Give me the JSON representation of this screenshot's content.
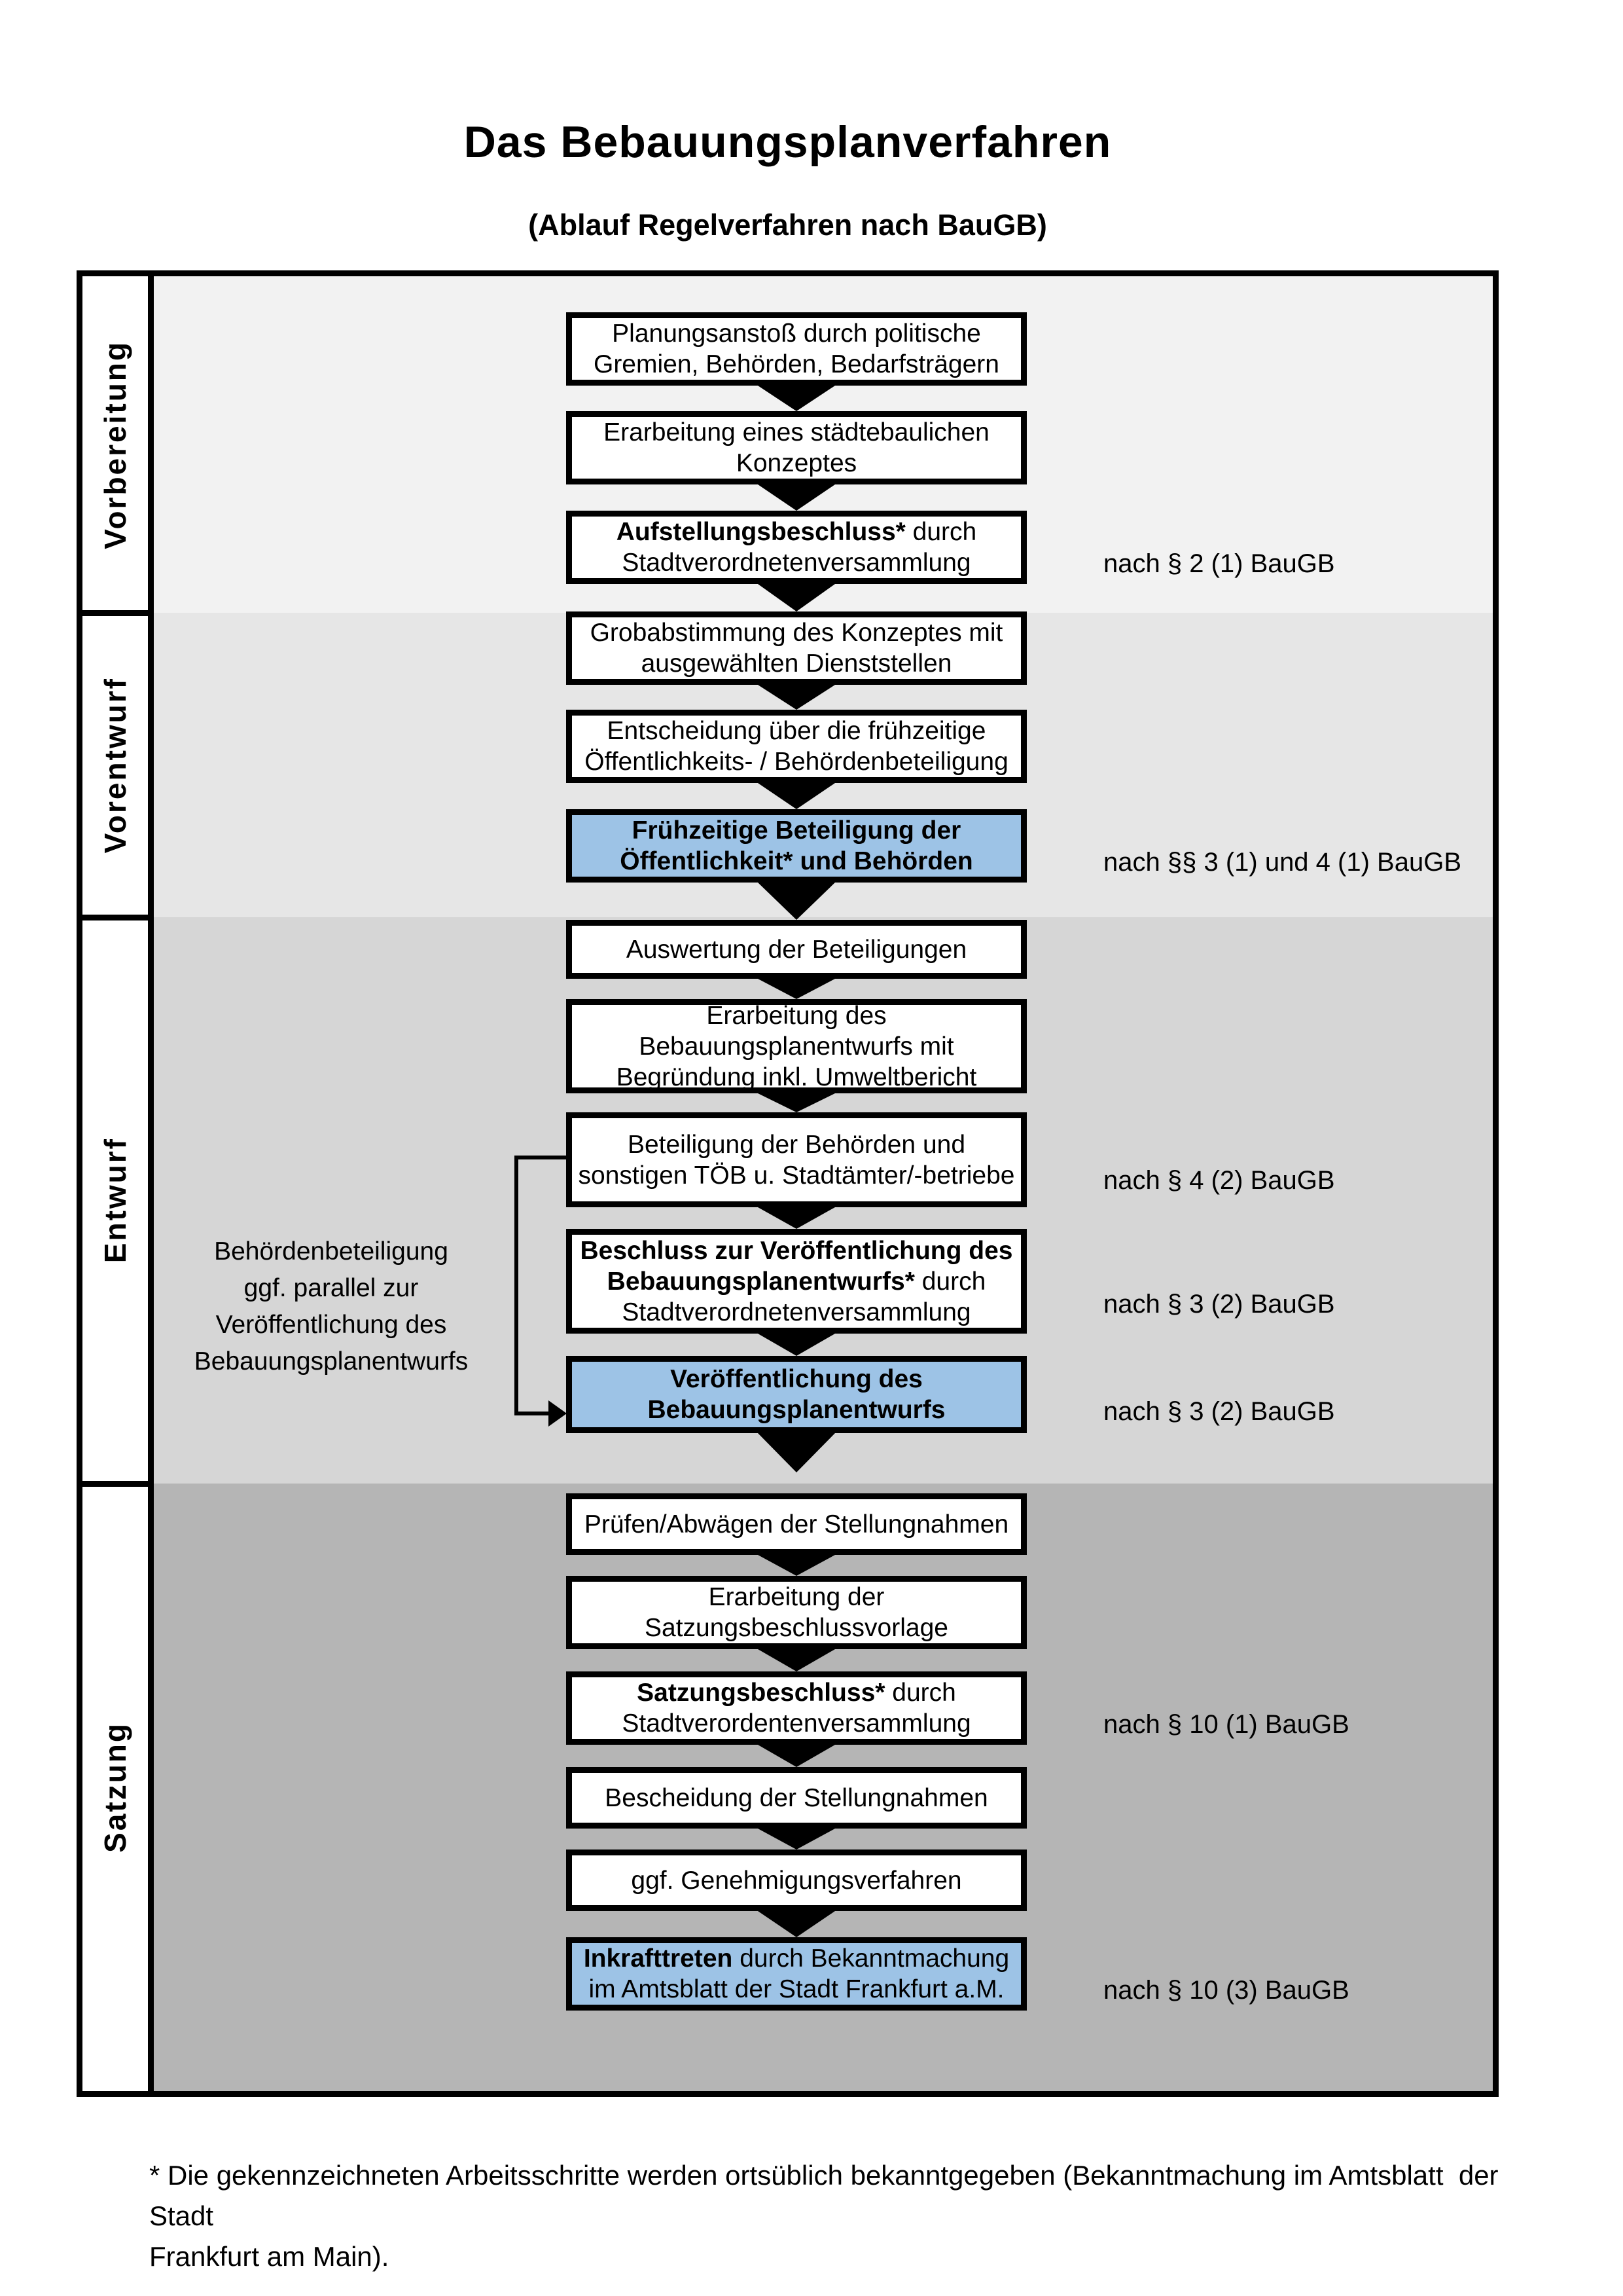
{
  "title": "Das Bebauungsplanverfahren",
  "subtitle": "(Ablauf Regelverfahren nach BauGB)",
  "colors": {
    "border": "#000000",
    "box_bg": "#ffffff",
    "highlight_box_bg": "#9dc3e6",
    "section_bgs": [
      "#f2f2f2",
      "#e6e6e6",
      "#d6d6d6",
      "#b5b5b5"
    ]
  },
  "phases": [
    {
      "label": "Vorbereitung"
    },
    {
      "label": "Vorentwurf"
    },
    {
      "label": "Entwurf"
    },
    {
      "label": "Satzung"
    }
  ],
  "steps": [
    {
      "segments": [
        {
          "text": "Planungsanstoß durch politische\nGremien, Behörden, Bedarfsträgern",
          "bold": false
        }
      ],
      "highlighted": false,
      "note": ""
    },
    {
      "segments": [
        {
          "text": "Erarbeitung eines städtebaulichen\nKonzeptes",
          "bold": false
        }
      ],
      "highlighted": false,
      "note": ""
    },
    {
      "segments": [
        {
          "text": "Aufstellungsbeschluss*",
          "bold": true
        },
        {
          "text": " durch\nStadtverordnetenversammlung",
          "bold": false
        }
      ],
      "highlighted": false,
      "note": "nach § 2 (1) BauGB"
    },
    {
      "segments": [
        {
          "text": "Grobabstimmung des Konzeptes mit\nausgewählten Dienststellen",
          "bold": false
        }
      ],
      "highlighted": false,
      "note": ""
    },
    {
      "segments": [
        {
          "text": "Entscheidung über die frühzeitige\nÖffentlichkeits- / Behördenbeteiligung",
          "bold": false
        }
      ],
      "highlighted": false,
      "note": ""
    },
    {
      "segments": [
        {
          "text": "Frühzeitige Beteiligung der\nÖffentlichkeit* und Behörden",
          "bold": true
        }
      ],
      "highlighted": true,
      "note": "nach §§ 3 (1) und 4 (1) BauGB"
    },
    {
      "segments": [
        {
          "text": "Auswertung der Beteiligungen",
          "bold": false
        }
      ],
      "highlighted": false,
      "note": ""
    },
    {
      "segments": [
        {
          "text": "Erarbeitung des\nBebauungsplanentwurfs mit\nBegründung inkl. Umweltbericht",
          "bold": false
        }
      ],
      "highlighted": false,
      "note": ""
    },
    {
      "segments": [
        {
          "text": "Beteiligung der Behörden und\nsonstigen TÖB u. Stadtämter/-betriebe",
          "bold": false
        }
      ],
      "highlighted": false,
      "note": "nach § 4 (2) BauGB"
    },
    {
      "segments": [
        {
          "text": "Beschluss zur Veröffentlichung des\nBebauungsplanentwurfs*",
          "bold": true
        },
        {
          "text": " durch\nStadtverordnetenversammlung",
          "bold": false
        }
      ],
      "highlighted": false,
      "note": "nach § 3 (2) BauGB"
    },
    {
      "segments": [
        {
          "text": "Veröffentlichung des\nBebauungsplanentwurfs",
          "bold": true
        }
      ],
      "highlighted": true,
      "note": "nach § 3 (2) BauGB"
    },
    {
      "segments": [
        {
          "text": "Prüfen/Abwägen der Stellungnahmen",
          "bold": false
        }
      ],
      "highlighted": false,
      "note": ""
    },
    {
      "segments": [
        {
          "text": "Erarbeitung der\nSatzungsbeschlussvorlage",
          "bold": false
        }
      ],
      "highlighted": false,
      "note": ""
    },
    {
      "segments": [
        {
          "text": "Satzungsbeschluss*",
          "bold": true
        },
        {
          "text": " durch\nStadtverordentenversammlung",
          "bold": false
        }
      ],
      "highlighted": false,
      "note": "nach § 10 (1) BauGB"
    },
    {
      "segments": [
        {
          "text": "Bescheidung der Stellungnahmen",
          "bold": false
        }
      ],
      "highlighted": false,
      "note": ""
    },
    {
      "segments": [
        {
          "text": "ggf. Genehmigungsverfahren",
          "bold": false
        }
      ],
      "highlighted": false,
      "note": ""
    },
    {
      "segments": [
        {
          "text": "Inkrafttreten",
          "bold": true
        },
        {
          "text": " durch Bekanntmachung\nim Amtsblatt der Stadt Frankfurt a.M.",
          "bold": false
        }
      ],
      "highlighted": true,
      "note": "nach § 10 (3) BauGB"
    }
  ],
  "side_note_left": {
    "lines": [
      "Behördenbeteiligung",
      "ggf. parallel zur",
      "Veröffentlichung des",
      "Bebauungsplanentwurfs"
    ]
  },
  "footnote": {
    "line1": "* Die gekennzeichneten Arbeitsschritte werden ortsüblich bekanntgegeben (Bekanntmachung im Amtsblatt  der Stadt",
    "line2": "Frankfurt am Main)."
  }
}
